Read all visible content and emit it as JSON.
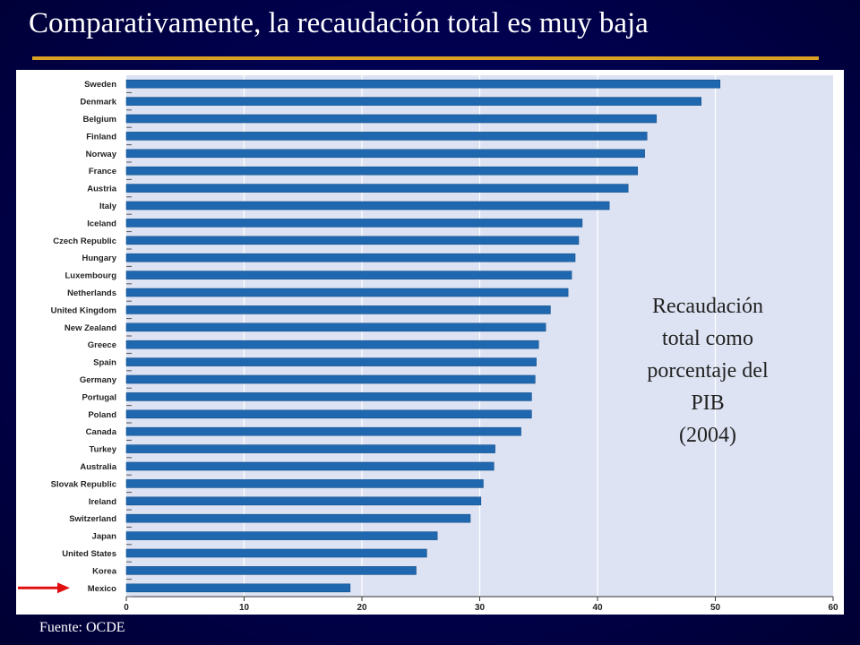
{
  "slide": {
    "title": "Comparativamente, la recaudación total es muy baja",
    "source": "Fuente: OCDE",
    "annotation_lines": [
      "Recaudación",
      "total como",
      "porcentaje del",
      "PIB",
      "(2004)"
    ]
  },
  "chart_data": {
    "type": "bar",
    "orientation": "horizontal",
    "categories": [
      "Sweden",
      "Denmark",
      "Belgium",
      "Finland",
      "Norway",
      "France",
      "Austria",
      "Italy",
      "Iceland",
      "Czech Republic",
      "Hungary",
      "Luxembourg",
      "Netherlands",
      "United Kingdom",
      "New Zealand",
      "Greece",
      "Spain",
      "Germany",
      "Portugal",
      "Poland",
      "Canada",
      "Turkey",
      "Australia",
      "Slovak Republic",
      "Ireland",
      "Switzerland",
      "Japan",
      "United States",
      "Korea",
      "Mexico"
    ],
    "values": [
      50.4,
      48.8,
      45.0,
      44.2,
      44.0,
      43.4,
      42.6,
      41.0,
      38.7,
      38.4,
      38.1,
      37.8,
      37.5,
      36.0,
      35.6,
      35.0,
      34.8,
      34.7,
      34.4,
      34.4,
      33.5,
      31.3,
      31.2,
      30.3,
      30.1,
      29.2,
      26.4,
      25.5,
      24.6,
      19.0
    ],
    "xlim": [
      0,
      60
    ],
    "xticks": [
      0,
      10,
      20,
      30,
      40,
      50,
      60
    ],
    "grid": true,
    "bar_color": "#1f68b0",
    "plot_background": "#dde3f3",
    "highlight": {
      "category": "Mexico",
      "marker": "arrow",
      "color": "#e01010"
    }
  }
}
